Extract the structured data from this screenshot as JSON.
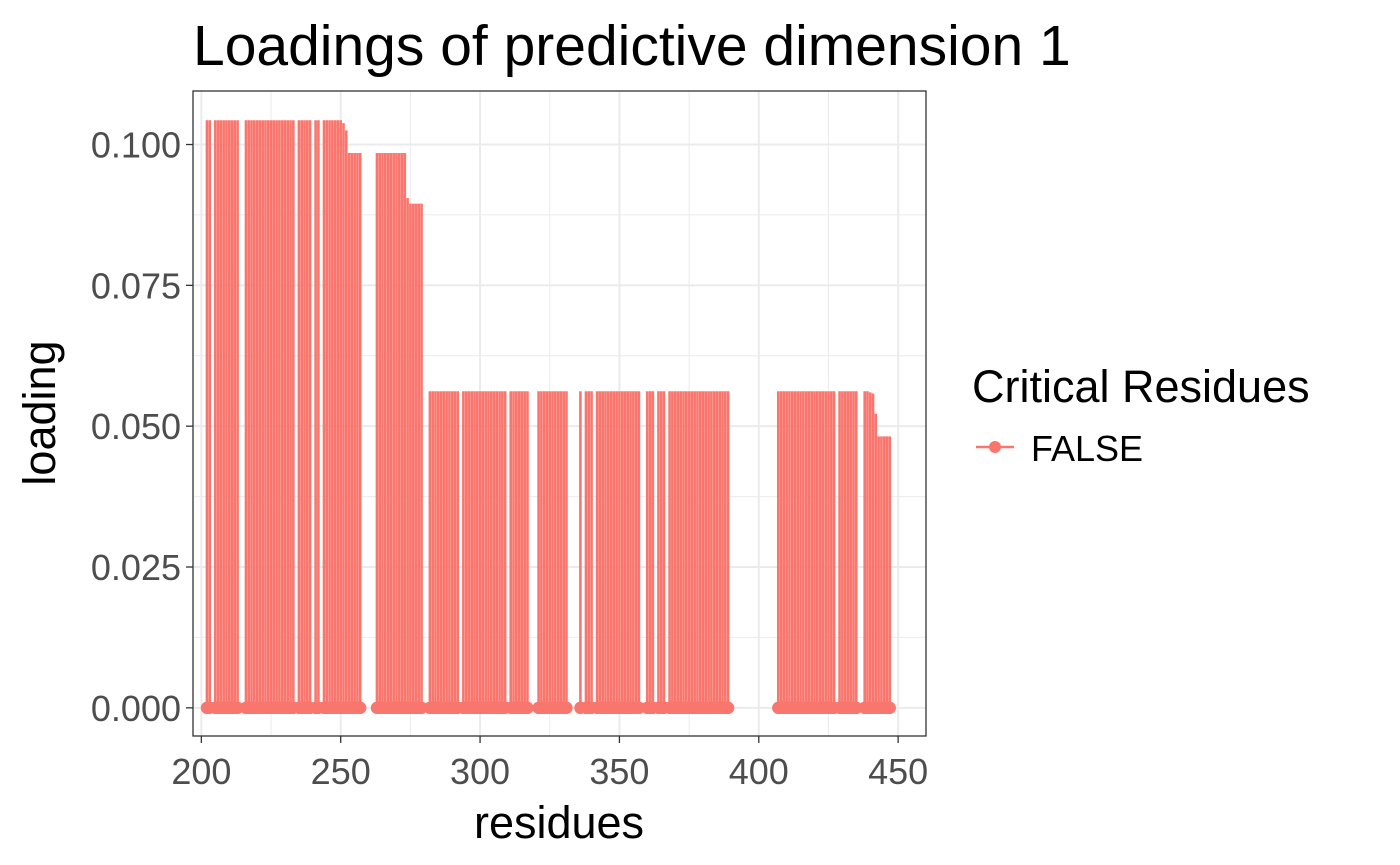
{
  "chart_data": {
    "type": "bar",
    "title": "Loadings of predictive dimension 1",
    "xlabel": "residues",
    "ylabel": "loading",
    "xlim": [
      197,
      460
    ],
    "ylim": [
      -0.005,
      0.1095
    ],
    "x_ticks": [
      200,
      250,
      300,
      350,
      400,
      450
    ],
    "y_ticks": [
      0.0,
      0.025,
      0.05,
      0.075,
      0.1
    ],
    "x_tick_labels": [
      "200",
      "250",
      "300",
      "350",
      "400",
      "450"
    ],
    "y_tick_labels": [
      "0.000",
      "0.025",
      "0.050",
      "0.075",
      "0.100"
    ],
    "grid": true,
    "legend": {
      "title": "Critical Residues",
      "position": "right",
      "entries": [
        {
          "label": "FALSE",
          "color": "#F8766D"
        }
      ]
    },
    "series": [
      {
        "name": "FALSE",
        "color": "#F8766D",
        "x": [
          202,
          203,
          205,
          206,
          207,
          208,
          209,
          210,
          211,
          212,
          213,
          216,
          217,
          218,
          219,
          220,
          221,
          222,
          223,
          224,
          225,
          226,
          227,
          228,
          229,
          230,
          231,
          232,
          233,
          235,
          236,
          237,
          238,
          239,
          241,
          242,
          244,
          245,
          246,
          247,
          248,
          249,
          250,
          251,
          252,
          253,
          254,
          255,
          256,
          257,
          263,
          264,
          265,
          266,
          267,
          268,
          269,
          270,
          271,
          272,
          273,
          274,
          275,
          276,
          277,
          278,
          279,
          282,
          283,
          284,
          285,
          286,
          287,
          288,
          289,
          290,
          291,
          292,
          294,
          295,
          296,
          297,
          298,
          299,
          300,
          301,
          302,
          303,
          304,
          305,
          306,
          307,
          308,
          309,
          311,
          312,
          313,
          314,
          315,
          316,
          317,
          321,
          322,
          323,
          324,
          325,
          326,
          327,
          328,
          329,
          330,
          331,
          336,
          338,
          339,
          340,
          342,
          343,
          344,
          345,
          346,
          347,
          348,
          349,
          350,
          351,
          352,
          353,
          354,
          355,
          356,
          357,
          360,
          361,
          362,
          364,
          365,
          366,
          368,
          369,
          370,
          371,
          372,
          373,
          374,
          375,
          376,
          377,
          378,
          379,
          380,
          381,
          382,
          383,
          384,
          385,
          386,
          387,
          388,
          389,
          407,
          408,
          409,
          410,
          411,
          412,
          413,
          414,
          415,
          416,
          417,
          418,
          419,
          420,
          421,
          422,
          423,
          424,
          425,
          426,
          427,
          429,
          430,
          431,
          432,
          433,
          434,
          435,
          438,
          439,
          440,
          441,
          442,
          443,
          444,
          445,
          446,
          447
        ],
        "y": [
          0.1043,
          0.1043,
          0.1043,
          0.1043,
          0.1043,
          0.1043,
          0.1043,
          0.1043,
          0.1043,
          0.1043,
          0.1043,
          0.1043,
          0.1043,
          0.1043,
          0.1043,
          0.1043,
          0.1043,
          0.1043,
          0.1043,
          0.1043,
          0.1043,
          0.1043,
          0.1043,
          0.1043,
          0.1043,
          0.1043,
          0.1043,
          0.1043,
          0.1043,
          0.1043,
          0.1043,
          0.1043,
          0.1043,
          0.1043,
          0.1043,
          0.1043,
          0.1043,
          0.1043,
          0.1043,
          0.1043,
          0.1043,
          0.1043,
          0.1043,
          0.1038,
          0.1025,
          0.0985,
          0.0985,
          0.0985,
          0.0985,
          0.0985,
          0.0985,
          0.0985,
          0.0985,
          0.0985,
          0.0985,
          0.0985,
          0.0985,
          0.0985,
          0.0985,
          0.0985,
          0.0985,
          0.0905,
          0.0895,
          0.0895,
          0.0895,
          0.0895,
          0.0895,
          0.0562,
          0.0562,
          0.0562,
          0.0562,
          0.0562,
          0.0562,
          0.0562,
          0.0562,
          0.0562,
          0.0562,
          0.0562,
          0.0562,
          0.0562,
          0.0562,
          0.0562,
          0.0562,
          0.0562,
          0.0562,
          0.0562,
          0.0562,
          0.0562,
          0.0562,
          0.0562,
          0.0562,
          0.0562,
          0.0562,
          0.0562,
          0.0562,
          0.0562,
          0.0562,
          0.0562,
          0.0562,
          0.0562,
          0.0562,
          0.0562,
          0.0562,
          0.0562,
          0.0562,
          0.0562,
          0.0562,
          0.0562,
          0.0562,
          0.0562,
          0.0562,
          0.0562,
          0.0562,
          0.0562,
          0.0562,
          0.0562,
          0.0562,
          0.0562,
          0.0562,
          0.0562,
          0.0562,
          0.0562,
          0.0562,
          0.0562,
          0.0562,
          0.0562,
          0.0562,
          0.0562,
          0.0562,
          0.0562,
          0.0562,
          0.0562,
          0.0562,
          0.0562,
          0.0562,
          0.0562,
          0.0562,
          0.0562,
          0.0562,
          0.0562,
          0.0562,
          0.0562,
          0.0562,
          0.0562,
          0.0562,
          0.0562,
          0.0562,
          0.0562,
          0.0562,
          0.0562,
          0.0562,
          0.0562,
          0.0562,
          0.0562,
          0.0562,
          0.0562,
          0.0562,
          0.0562,
          0.0562,
          0.0562,
          0.0562,
          0.0562,
          0.0562,
          0.0562,
          0.0562,
          0.0562,
          0.0562,
          0.0562,
          0.0562,
          0.0562,
          0.0562,
          0.0562,
          0.0562,
          0.0562,
          0.0562,
          0.0562,
          0.0562,
          0.0562,
          0.0562,
          0.0562,
          0.0562,
          0.0562,
          0.0562,
          0.0562,
          0.0562,
          0.0562,
          0.0562,
          0.0562,
          0.0562,
          0.0562,
          0.056,
          0.0558,
          0.0522,
          0.0482,
          0.0482,
          0.0482,
          0.0482,
          0.0482
        ]
      }
    ]
  }
}
